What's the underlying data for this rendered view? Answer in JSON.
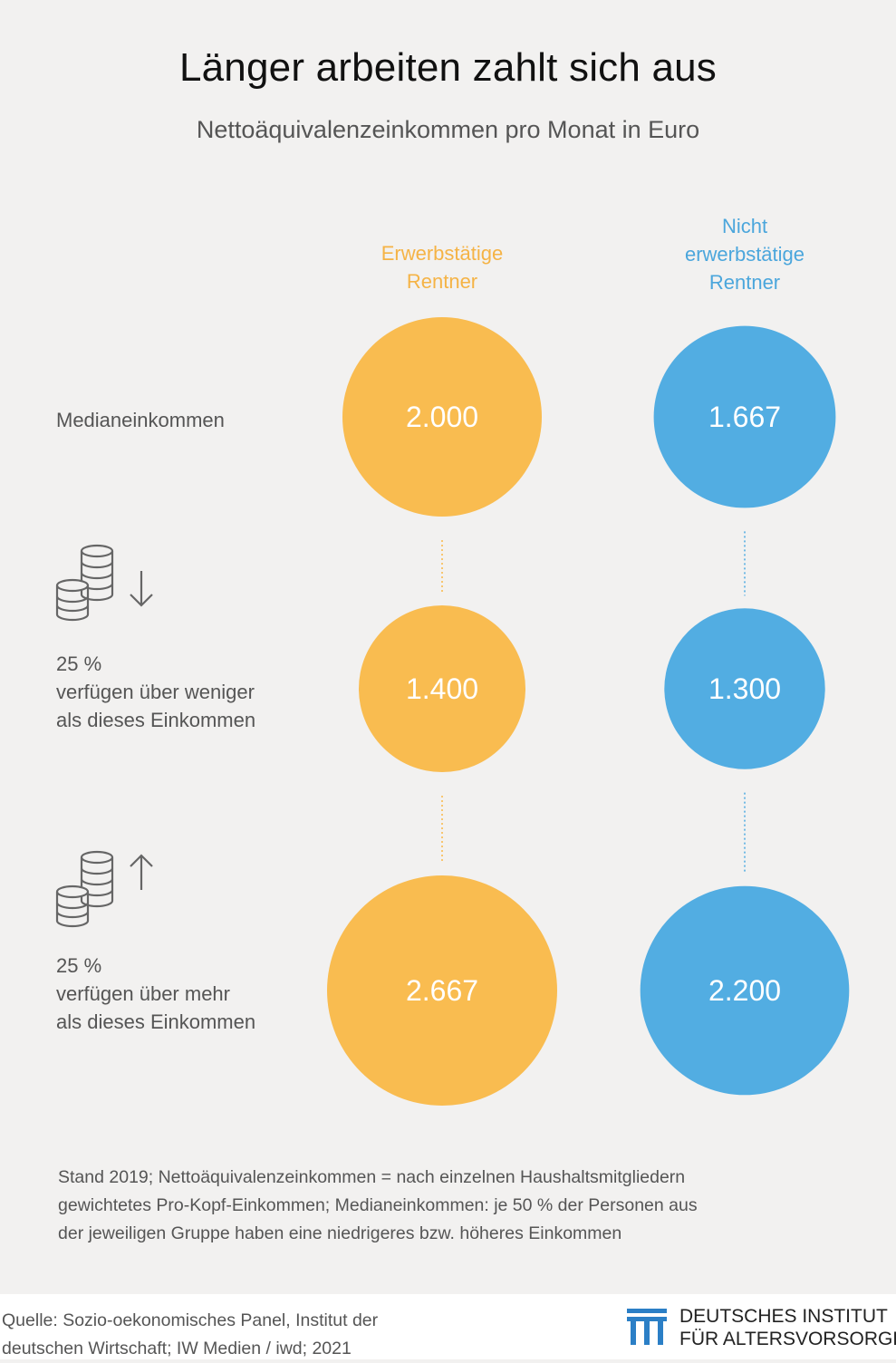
{
  "header": {
    "title": "Länger arbeiten zahlt sich aus",
    "subtitle": "Nettoäquivalenzeinkommen pro Monat in Euro"
  },
  "columns": {
    "working": [
      "Erwerbstätige",
      "Rentner"
    ],
    "nonworking": [
      "Nicht",
      "erwerbstätige",
      "Rentner"
    ]
  },
  "rows": {
    "median": "Medianeinkommen",
    "lower": [
      "25 %",
      "verfügen über weniger",
      "als dieses Einkommen"
    ],
    "upper": [
      "25 %",
      "verfügen über mehr",
      "als dieses Einkommen"
    ]
  },
  "icons": {
    "lower": [
      "coins-icon",
      "arrow-down-icon"
    ],
    "upper": [
      "coins-icon",
      "arrow-up-icon"
    ]
  },
  "colors": {
    "working": "#f9bc50",
    "nonworking": "#52ade2",
    "working_text": "#f5b345",
    "nonworking_text": "#4ba6dc"
  },
  "chart_data": {
    "type": "bubble",
    "title": "Länger arbeiten zahlt sich aus",
    "subtitle": "Nettoäquivalenzeinkommen pro Monat in Euro",
    "categories": [
      "Medianeinkommen",
      "25 % verfügen über weniger als dieses Einkommen",
      "25 % verfügen über mehr als dieses Einkommen"
    ],
    "series": [
      {
        "name": "Erwerbstätige Rentner",
        "values": [
          2000,
          1400,
          2667
        ],
        "labels": [
          "2.000",
          "1.400",
          "2.667"
        ]
      },
      {
        "name": "Nicht erwerbstätige Rentner",
        "values": [
          1667,
          1300,
          2200
        ],
        "labels": [
          "1.667",
          "1.300",
          "2.200"
        ]
      }
    ]
  },
  "notes": [
    "Stand 2019; Nettoäquivalenzeinkommen = nach einzelnen Haushaltsmitgliedern",
    "gewichtetes Pro-Kopf-Einkommen; Medianeinkommen: je 50 % der Personen aus",
    "der jeweiligen Gruppe haben eine niedrigeres bzw. höheres Einkommen"
  ],
  "source": [
    "Quelle: Sozio-oekonomisches Panel, Institut der",
    "deutschen Wirtschaft; IW Medien / iwd; 2021"
  ],
  "logo": [
    "DEUTSCHES INSTITUT",
    "FÜR ALTERSVORSORGE"
  ]
}
